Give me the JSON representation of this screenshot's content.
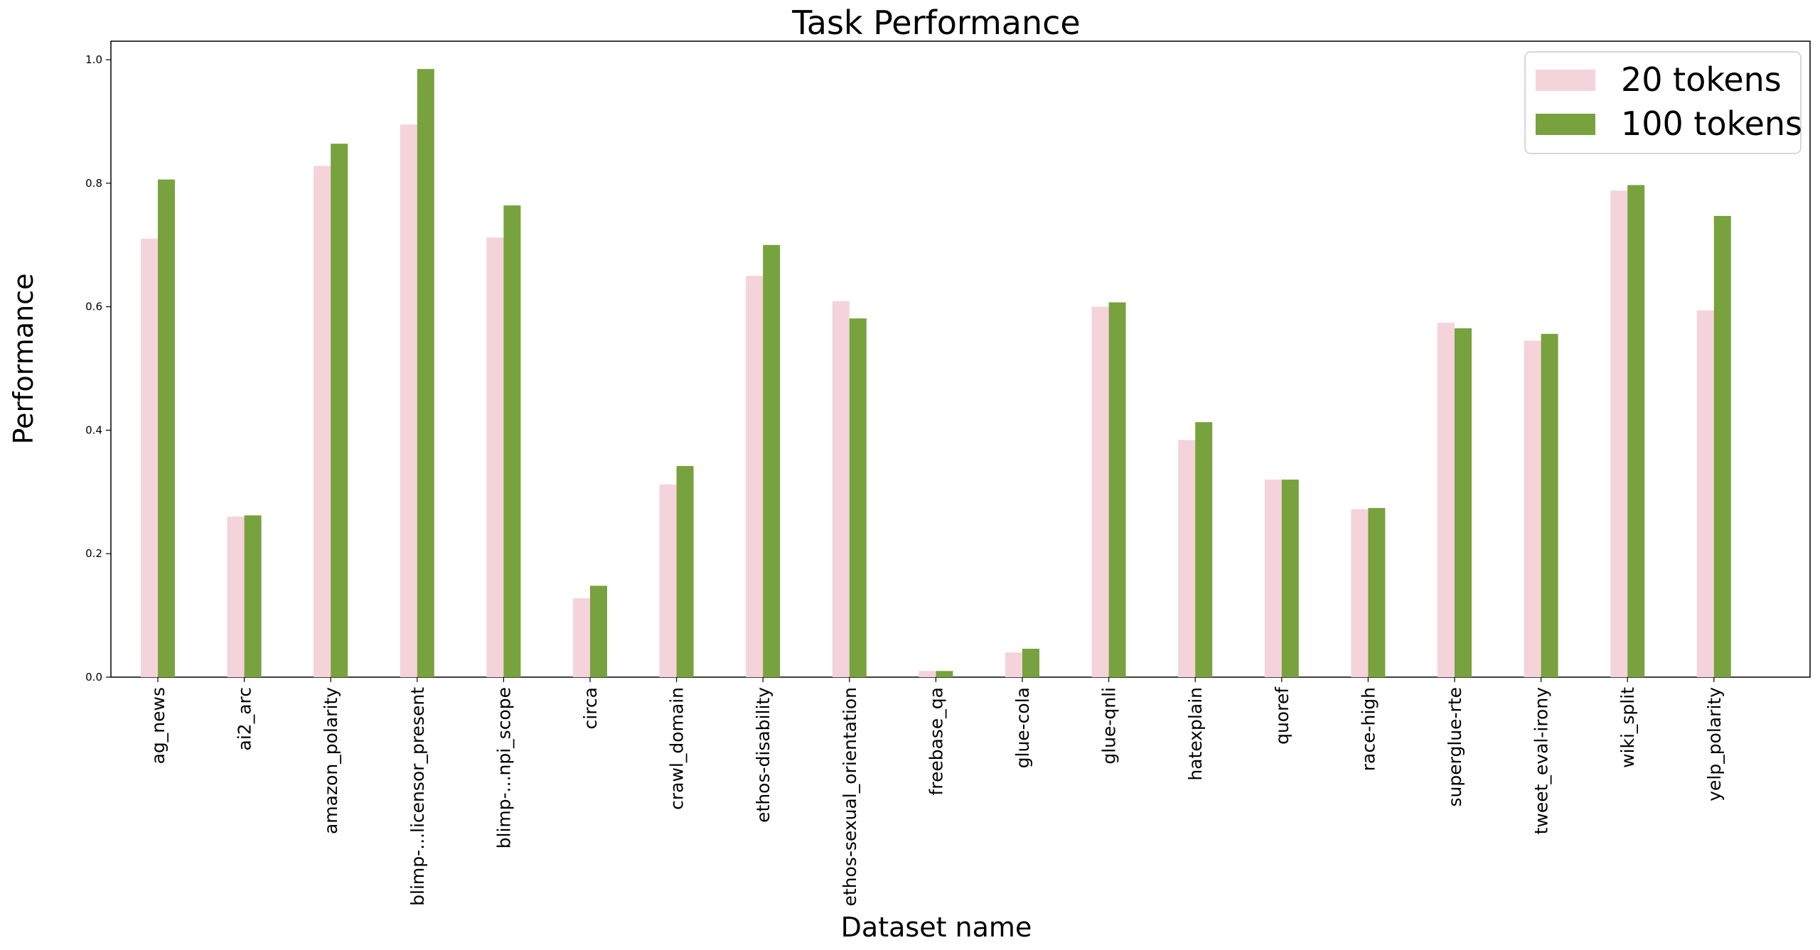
{
  "chart_data": {
    "type": "bar",
    "title": "Task Performance",
    "xlabel": "Dataset name",
    "ylabel": "Performance",
    "ylim": [
      0,
      1.03
    ],
    "yticks": [
      "0.0",
      "0.2",
      "0.4",
      "0.6",
      "0.8",
      "1.0"
    ],
    "ytick_values": [
      0.0,
      0.2,
      0.4,
      0.6,
      0.8,
      1.0
    ],
    "grid": false,
    "legend_position": "top-right",
    "categories": [
      "ag_news",
      "ai2_arc",
      "amazon_polarity",
      "blimp-...licensor_present",
      "blimp-...npi_scope",
      "circa",
      "crawl_domain",
      "ethos-disability",
      "ethos-sexual_orientation",
      "freebase_qa",
      "glue-cola",
      "glue-qnli",
      "hatexplain",
      "quoref",
      "race-high",
      "superglue-rte",
      "tweet_eval-irony",
      "wiki_split",
      "yelp_polarity"
    ],
    "series": [
      {
        "name": "20 tokens",
        "color": "#f5d3da",
        "values": [
          0.71,
          0.26,
          0.828,
          0.895,
          0.712,
          0.128,
          0.312,
          0.65,
          0.609,
          0.01,
          0.04,
          0.6,
          0.384,
          0.32,
          0.272,
          0.574,
          0.545,
          0.788,
          0.594
        ]
      },
      {
        "name": "100 tokens",
        "color": "#78a23d",
        "values": [
          0.806,
          0.262,
          0.864,
          0.985,
          0.764,
          0.148,
          0.342,
          0.7,
          0.581,
          0.01,
          0.046,
          0.607,
          0.413,
          0.32,
          0.274,
          0.565,
          0.556,
          0.797,
          0.747
        ]
      }
    ]
  }
}
